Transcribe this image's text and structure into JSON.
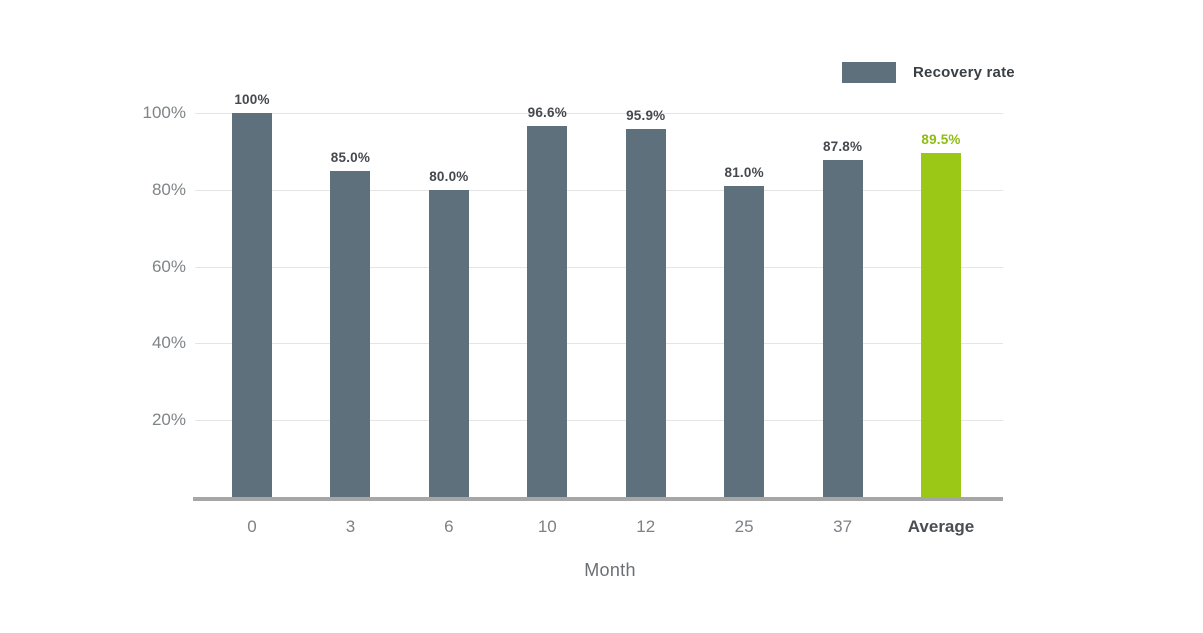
{
  "chart_data": {
    "type": "bar",
    "title": "",
    "xlabel": "Month",
    "ylabel": "",
    "categories": [
      "0",
      "3",
      "6",
      "10",
      "12",
      "25",
      "37",
      "Average"
    ],
    "values": [
      100,
      85.0,
      80.0,
      96.6,
      95.9,
      81.0,
      87.8,
      89.5
    ],
    "value_labels": [
      "100%",
      "85.0%",
      "80.0%",
      "96.6%",
      "95.9%",
      "81.0%",
      "87.8%",
      "89.5%"
    ],
    "highlight_index": 7,
    "ylim": [
      0,
      100
    ],
    "yticks": [
      {
        "value": 100,
        "label": "100%"
      },
      {
        "value": 80,
        "label": "80%"
      },
      {
        "value": 60,
        "label": "60%"
      },
      {
        "value": 40,
        "label": "40%"
      },
      {
        "value": 20,
        "label": "20%"
      }
    ],
    "grid": true,
    "legend": {
      "label": "Recovery rate",
      "position": "top-right"
    },
    "colors": {
      "bar": "#5d707c",
      "highlight_bar": "#9bc716",
      "value_label": "#45494d",
      "highlight_value_label": "#8fbc10",
      "gridline": "#e5e5e5",
      "baseline": "#a6a6a6"
    }
  }
}
